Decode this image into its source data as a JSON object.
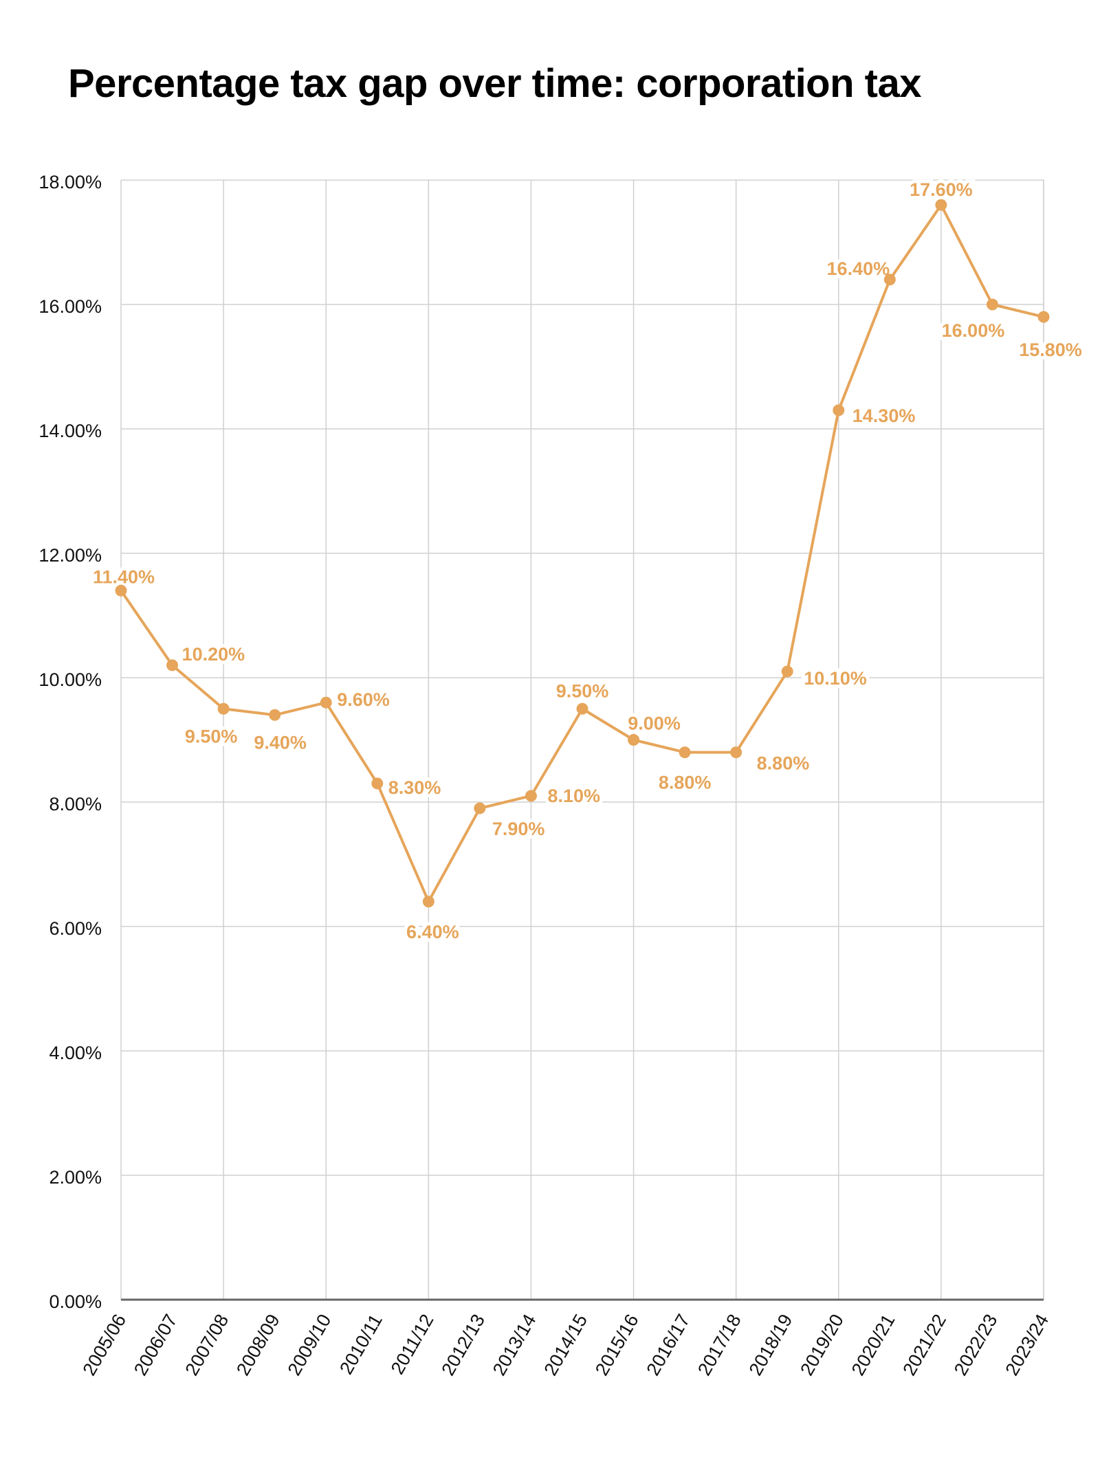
{
  "chart_data": {
    "type": "line",
    "title": "Percentage tax gap over time: corporation tax",
    "xlabel": "",
    "ylabel": "",
    "categories": [
      "2005/06",
      "2006/07",
      "2007/08",
      "2008/09",
      "2009/10",
      "2010/11",
      "2011/12",
      "2012/13",
      "2013/14",
      "2014/15",
      "2015/16",
      "2016/17",
      "2017/18",
      "2018/19",
      "2019/20",
      "2020/21",
      "2021/22",
      "2022/23",
      "2023/24"
    ],
    "series": [
      {
        "values": [
          11.4,
          10.2,
          9.5,
          9.4,
          9.6,
          8.3,
          6.4,
          7.9,
          8.1,
          9.5,
          9.0,
          8.8,
          8.8,
          10.1,
          14.3,
          16.4,
          17.6,
          16.0,
          15.8
        ],
        "labels": [
          "11.40%",
          "10.20%",
          "9.50%",
          "9.40%",
          "9.60%",
          "8.30%",
          "6.40%",
          "7.90%",
          "8.10%",
          "9.50%",
          "9.00%",
          "8.80%",
          "8.80%",
          "10.10%",
          "14.30%",
          "16.40%",
          "17.60%",
          "16.00%",
          "15.80%"
        ]
      }
    ],
    "ylim": [
      0,
      18
    ],
    "yticks": [
      "0.00%",
      "2.00%",
      "4.00%",
      "6.00%",
      "8.00%",
      "10.00%",
      "12.00%",
      "14.00%",
      "16.00%",
      "18.00%"
    ],
    "grid": true,
    "legend": "none",
    "colors": {
      "series": "#E6A55A",
      "grid": "#d0d0d0",
      "axis": "#666666"
    }
  }
}
